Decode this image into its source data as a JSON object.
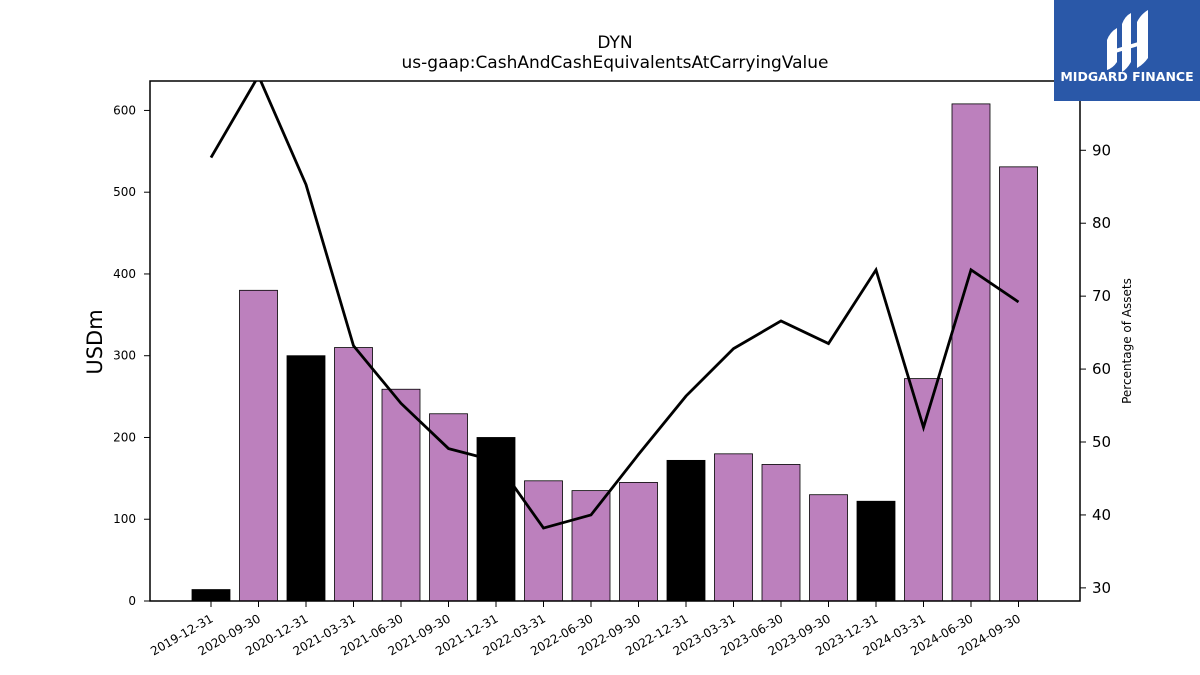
{
  "chart_data": {
    "type": "bar",
    "title": "DYN",
    "subtitle": "us-gaap:CashAndCashEquivalentsAtCarryingValue",
    "ylabel": "USDm",
    "y2label": "Percentage of Assets",
    "categories": [
      "2019-12-31",
      "2020-09-30",
      "2020-12-31",
      "2021-03-31",
      "2021-06-30",
      "2021-09-30",
      "2021-12-31",
      "2022-03-31",
      "2022-06-30",
      "2022-09-30",
      "2022-12-31",
      "2023-03-31",
      "2023-06-30",
      "2023-09-30",
      "2023-12-31",
      "2024-03-31",
      "2024-06-30",
      "2024-09-30"
    ],
    "series": [
      {
        "values": [
          14,
          380,
          300,
          310,
          259,
          229,
          200,
          147,
          135,
          145,
          172,
          180,
          167,
          130,
          122,
          272,
          608,
          531
        ],
        "bar_colors": [
          "#000000",
          "#bc80bd",
          "#000000",
          "#bc80bd",
          "#bc80bd",
          "#bc80bd",
          "#000000",
          "#bc80bd",
          "#bc80bd",
          "#bc80bd",
          "#000000",
          "#bc80bd",
          "#bc80bd",
          "#bc80bd",
          "#000000",
          "#bc80bd",
          "#bc80bd",
          "#bc80bd"
        ],
        "axis": "left"
      },
      {
        "type": "line",
        "values": [
          89.0,
          100.2,
          85.3,
          63.2,
          55.3,
          49.1,
          47.4,
          38.2,
          40.0,
          48.3,
          56.3,
          62.8,
          66.6,
          63.5,
          73.6,
          52.0,
          73.6,
          69.2
        ],
        "color": "#000000",
        "axis": "right"
      }
    ],
    "ylim": [
      0,
      636
    ],
    "y2lim": [
      28.2,
      99.5
    ],
    "yticks": [
      0,
      100,
      200,
      300,
      400,
      500,
      600
    ],
    "y2ticks": [
      30,
      40,
      50,
      60,
      70,
      80,
      90
    ],
    "grid": false,
    "legend": "none"
  },
  "logo": {
    "text": "MIDGARD FINANCE",
    "background": "#2a58a8"
  }
}
